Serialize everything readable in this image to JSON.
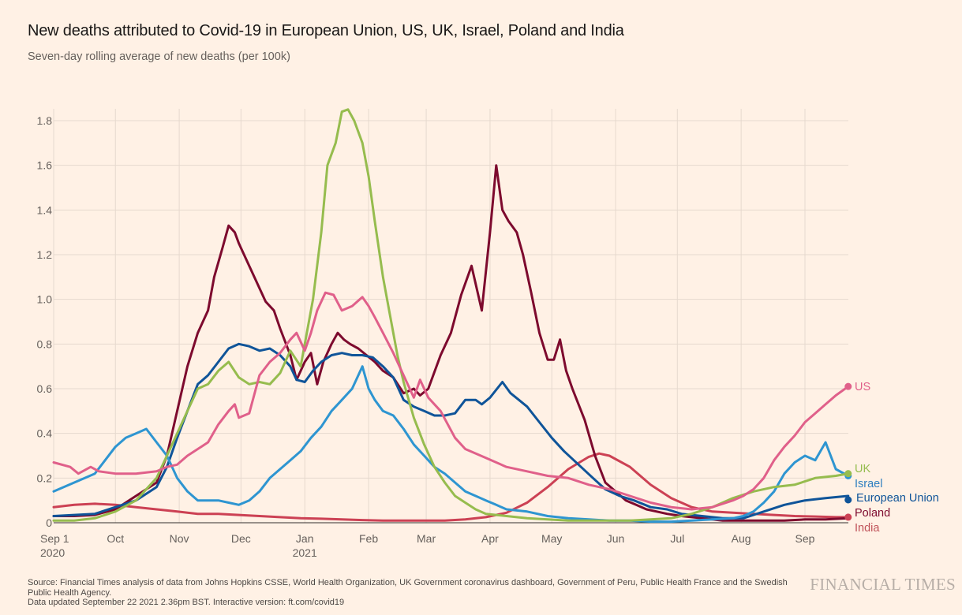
{
  "header": {
    "title": "New deaths attributed to Covid-19 in European Union, US, UK, Israel, Poland and India",
    "subtitle": "Seven-day rolling average of new deaths (per 100k)"
  },
  "footer": {
    "source_line1": "Source: Financial Times analysis of data from Johns Hopkins CSSE, World Health Organization, UK Government coronavirus dashboard, Government of Peru, Public Health France and the Swedish Public Health Agency.",
    "source_line2": "Data updated September 22 2021 2.36pm BST. Interactive version: ft.com/covid19",
    "logo": "FINANCIAL TIMES"
  },
  "chart_data": {
    "type": "line",
    "title": "New deaths attributed to Covid-19 in European Union, US, UK, Israel, Poland and India",
    "subtitle": "Seven-day rolling average of new deaths (per 100k)",
    "xlabel": "",
    "ylabel": "",
    "x_unit": "days since Sep 1 2020",
    "xlim": [
      0,
      386
    ],
    "ylim": [
      0,
      1.85
    ],
    "grid": true,
    "legend": "direct labels at line ends (right)",
    "y_ticks": [
      0,
      0.2,
      0.4,
      0.6,
      0.8,
      1.0,
      1.2,
      1.4,
      1.6,
      1.8
    ],
    "y_tick_labels": [
      "0",
      "0.2",
      "0.4",
      "0.6",
      "0.8",
      "1.0",
      "1.2",
      "1.4",
      "1.6",
      "1.8"
    ],
    "x_ticks": [
      {
        "day": 0,
        "label": "Sep 1",
        "sublabel": "2020"
      },
      {
        "day": 30,
        "label": "Oct",
        "sublabel": ""
      },
      {
        "day": 61,
        "label": "Nov",
        "sublabel": ""
      },
      {
        "day": 91,
        "label": "Dec",
        "sublabel": ""
      },
      {
        "day": 122,
        "label": "Jan",
        "sublabel": "2021"
      },
      {
        "day": 153,
        "label": "Feb",
        "sublabel": ""
      },
      {
        "day": 181,
        "label": "Mar",
        "sublabel": ""
      },
      {
        "day": 212,
        "label": "Apr",
        "sublabel": ""
      },
      {
        "day": 242,
        "label": "May",
        "sublabel": ""
      },
      {
        "day": 273,
        "label": "Jun",
        "sublabel": ""
      },
      {
        "day": 303,
        "label": "Jul",
        "sublabel": ""
      },
      {
        "day": 334,
        "label": "Aug",
        "sublabel": ""
      },
      {
        "day": 365,
        "label": "Sep",
        "sublabel": ""
      }
    ],
    "series": [
      {
        "name": "India",
        "label": "India",
        "color": "#cc4154",
        "label_color": "#c0535a",
        "end_dot": false,
        "x": [
          0,
          10,
          20,
          30,
          40,
          50,
          60,
          70,
          80,
          90,
          100,
          110,
          120,
          130,
          140,
          150,
          160,
          170,
          180,
          190,
          200,
          210,
          220,
          230,
          240,
          250,
          260,
          265,
          270,
          280,
          290,
          300,
          310,
          320,
          330,
          340,
          350,
          360,
          370,
          380,
          386
        ],
        "y": [
          0.07,
          0.08,
          0.085,
          0.08,
          0.07,
          0.06,
          0.05,
          0.04,
          0.04,
          0.035,
          0.03,
          0.025,
          0.02,
          0.018,
          0.015,
          0.012,
          0.01,
          0.01,
          0.01,
          0.01,
          0.015,
          0.025,
          0.045,
          0.09,
          0.16,
          0.24,
          0.295,
          0.31,
          0.3,
          0.25,
          0.17,
          0.11,
          0.07,
          0.05,
          0.045,
          0.04,
          0.035,
          0.03,
          0.028,
          0.025,
          0.025
        ]
      },
      {
        "name": "Poland",
        "label": "Poland",
        "color": "#7d0a2e",
        "label_color": "#7d0a2e",
        "end_dot": false,
        "x": [
          0,
          10,
          20,
          30,
          40,
          50,
          55,
          60,
          65,
          70,
          75,
          78,
          82,
          85,
          88,
          90,
          95,
          100,
          103,
          107,
          110,
          115,
          118,
          122,
          125,
          128,
          131,
          135,
          138,
          141,
          144,
          148,
          152,
          156,
          160,
          165,
          170,
          175,
          178,
          182,
          188,
          193,
          198,
          203,
          208,
          212,
          215,
          218,
          221,
          225,
          228,
          232,
          236,
          240,
          243,
          246,
          249,
          252,
          258,
          263,
          268,
          273,
          278,
          283,
          288,
          293,
          298,
          305,
          315,
          325,
          335,
          345,
          355,
          365,
          375,
          386
        ],
        "y": [
          0.03,
          0.03,
          0.035,
          0.06,
          0.12,
          0.18,
          0.3,
          0.5,
          0.7,
          0.85,
          0.95,
          1.1,
          1.23,
          1.33,
          1.3,
          1.25,
          1.15,
          1.05,
          0.99,
          0.95,
          0.87,
          0.75,
          0.64,
          0.72,
          0.76,
          0.62,
          0.72,
          0.8,
          0.85,
          0.82,
          0.8,
          0.78,
          0.75,
          0.72,
          0.68,
          0.65,
          0.58,
          0.6,
          0.57,
          0.6,
          0.75,
          0.85,
          1.02,
          1.15,
          0.95,
          1.3,
          1.6,
          1.4,
          1.35,
          1.3,
          1.2,
          1.03,
          0.85,
          0.73,
          0.73,
          0.82,
          0.68,
          0.6,
          0.46,
          0.3,
          0.18,
          0.14,
          0.1,
          0.08,
          0.06,
          0.05,
          0.04,
          0.03,
          0.02,
          0.01,
          0.01,
          0.01,
          0.01,
          0.015,
          0.015,
          0.02
        ]
      },
      {
        "name": "European Union",
        "label": "European Union",
        "color": "#0f5499",
        "label_color": "#0f5499",
        "end_dot": true,
        "x": [
          0,
          10,
          20,
          30,
          40,
          50,
          55,
          60,
          65,
          70,
          75,
          80,
          85,
          90,
          95,
          100,
          105,
          110,
          115,
          118,
          122,
          126,
          130,
          135,
          140,
          145,
          150,
          155,
          160,
          165,
          170,
          175,
          180,
          185,
          190,
          195,
          200,
          205,
          208,
          212,
          218,
          222,
          226,
          230,
          236,
          242,
          248,
          255,
          262,
          268,
          275,
          282,
          290,
          298,
          305,
          315,
          325,
          335,
          345,
          355,
          365,
          375,
          386
        ],
        "y": [
          0.03,
          0.035,
          0.04,
          0.07,
          0.1,
          0.16,
          0.25,
          0.38,
          0.5,
          0.62,
          0.66,
          0.72,
          0.78,
          0.8,
          0.79,
          0.77,
          0.78,
          0.75,
          0.7,
          0.64,
          0.63,
          0.68,
          0.72,
          0.75,
          0.76,
          0.75,
          0.75,
          0.74,
          0.7,
          0.65,
          0.55,
          0.52,
          0.5,
          0.48,
          0.48,
          0.49,
          0.55,
          0.55,
          0.53,
          0.56,
          0.63,
          0.58,
          0.55,
          0.52,
          0.45,
          0.38,
          0.32,
          0.26,
          0.2,
          0.15,
          0.12,
          0.1,
          0.07,
          0.06,
          0.04,
          0.03,
          0.02,
          0.02,
          0.05,
          0.08,
          0.1,
          0.11,
          0.12
        ]
      },
      {
        "name": "Israel",
        "label": "Israel",
        "color": "#2e95d1",
        "label_color": "#2e7fc0",
        "end_dot": true,
        "x": [
          0,
          10,
          20,
          25,
          30,
          35,
          40,
          45,
          50,
          55,
          60,
          65,
          70,
          75,
          80,
          85,
          90,
          95,
          100,
          105,
          110,
          115,
          120,
          125,
          130,
          135,
          140,
          145,
          150,
          153,
          156,
          160,
          165,
          170,
          175,
          180,
          185,
          190,
          195,
          200,
          205,
          210,
          215,
          220,
          230,
          240,
          250,
          260,
          270,
          280,
          290,
          300,
          310,
          320,
          330,
          335,
          340,
          345,
          350,
          355,
          360,
          365,
          370,
          375,
          380,
          386
        ],
        "y": [
          0.14,
          0.18,
          0.22,
          0.28,
          0.34,
          0.38,
          0.4,
          0.42,
          0.36,
          0.3,
          0.2,
          0.14,
          0.1,
          0.1,
          0.1,
          0.09,
          0.08,
          0.1,
          0.14,
          0.2,
          0.24,
          0.28,
          0.32,
          0.38,
          0.43,
          0.5,
          0.55,
          0.6,
          0.7,
          0.6,
          0.55,
          0.5,
          0.48,
          0.42,
          0.35,
          0.3,
          0.25,
          0.22,
          0.18,
          0.14,
          0.12,
          0.1,
          0.08,
          0.06,
          0.05,
          0.03,
          0.02,
          0.015,
          0.01,
          0.01,
          0.005,
          0.005,
          0.01,
          0.015,
          0.02,
          0.03,
          0.05,
          0.09,
          0.14,
          0.22,
          0.27,
          0.3,
          0.28,
          0.36,
          0.24,
          0.21
        ]
      },
      {
        "name": "UK",
        "label": "UK",
        "color": "#96bc4e",
        "label_color": "#96bc4e",
        "end_dot": true,
        "x": [
          0,
          10,
          20,
          30,
          40,
          50,
          55,
          60,
          65,
          70,
          75,
          80,
          85,
          90,
          95,
          100,
          105,
          110,
          115,
          120,
          123,
          126,
          130,
          133,
          137,
          140,
          143,
          146,
          150,
          153,
          156,
          160,
          163,
          167,
          170,
          175,
          180,
          185,
          190,
          195,
          200,
          205,
          210,
          220,
          230,
          240,
          250,
          260,
          270,
          280,
          290,
          300,
          310,
          320,
          330,
          340,
          350,
          360,
          370,
          380,
          386
        ],
        "y": [
          0.01,
          0.01,
          0.02,
          0.05,
          0.1,
          0.2,
          0.3,
          0.4,
          0.5,
          0.6,
          0.62,
          0.68,
          0.72,
          0.65,
          0.62,
          0.63,
          0.62,
          0.67,
          0.77,
          0.7,
          0.85,
          1.0,
          1.3,
          1.6,
          1.7,
          1.84,
          1.85,
          1.8,
          1.7,
          1.55,
          1.35,
          1.1,
          0.95,
          0.75,
          0.63,
          0.47,
          0.35,
          0.25,
          0.18,
          0.12,
          0.09,
          0.06,
          0.04,
          0.03,
          0.02,
          0.015,
          0.01,
          0.01,
          0.01,
          0.01,
          0.015,
          0.02,
          0.04,
          0.07,
          0.11,
          0.14,
          0.16,
          0.17,
          0.2,
          0.21,
          0.22
        ]
      },
      {
        "name": "US",
        "label": "US",
        "color": "#e0608a",
        "label_color": "#e0608a",
        "end_dot": true,
        "x": [
          0,
          8,
          12,
          18,
          22,
          30,
          40,
          50,
          55,
          60,
          65,
          70,
          75,
          80,
          85,
          88,
          90,
          95,
          100,
          105,
          110,
          115,
          118,
          122,
          125,
          128,
          132,
          136,
          140,
          145,
          150,
          153,
          156,
          160,
          165,
          170,
          175,
          178,
          182,
          188,
          195,
          200,
          210,
          220,
          230,
          240,
          250,
          260,
          270,
          280,
          290,
          300,
          310,
          320,
          330,
          335,
          340,
          345,
          350,
          355,
          360,
          365,
          370,
          375,
          380,
          386
        ],
        "y": [
          0.27,
          0.25,
          0.22,
          0.25,
          0.23,
          0.22,
          0.22,
          0.23,
          0.25,
          0.26,
          0.3,
          0.33,
          0.36,
          0.44,
          0.5,
          0.53,
          0.47,
          0.49,
          0.66,
          0.72,
          0.76,
          0.82,
          0.85,
          0.77,
          0.85,
          0.95,
          1.03,
          1.02,
          0.95,
          0.97,
          1.01,
          0.97,
          0.92,
          0.85,
          0.76,
          0.66,
          0.56,
          0.64,
          0.56,
          0.5,
          0.38,
          0.33,
          0.29,
          0.25,
          0.23,
          0.21,
          0.2,
          0.17,
          0.15,
          0.12,
          0.09,
          0.07,
          0.06,
          0.07,
          0.1,
          0.12,
          0.15,
          0.2,
          0.28,
          0.34,
          0.39,
          0.45,
          0.49,
          0.53,
          0.57,
          0.61
        ]
      }
    ]
  }
}
